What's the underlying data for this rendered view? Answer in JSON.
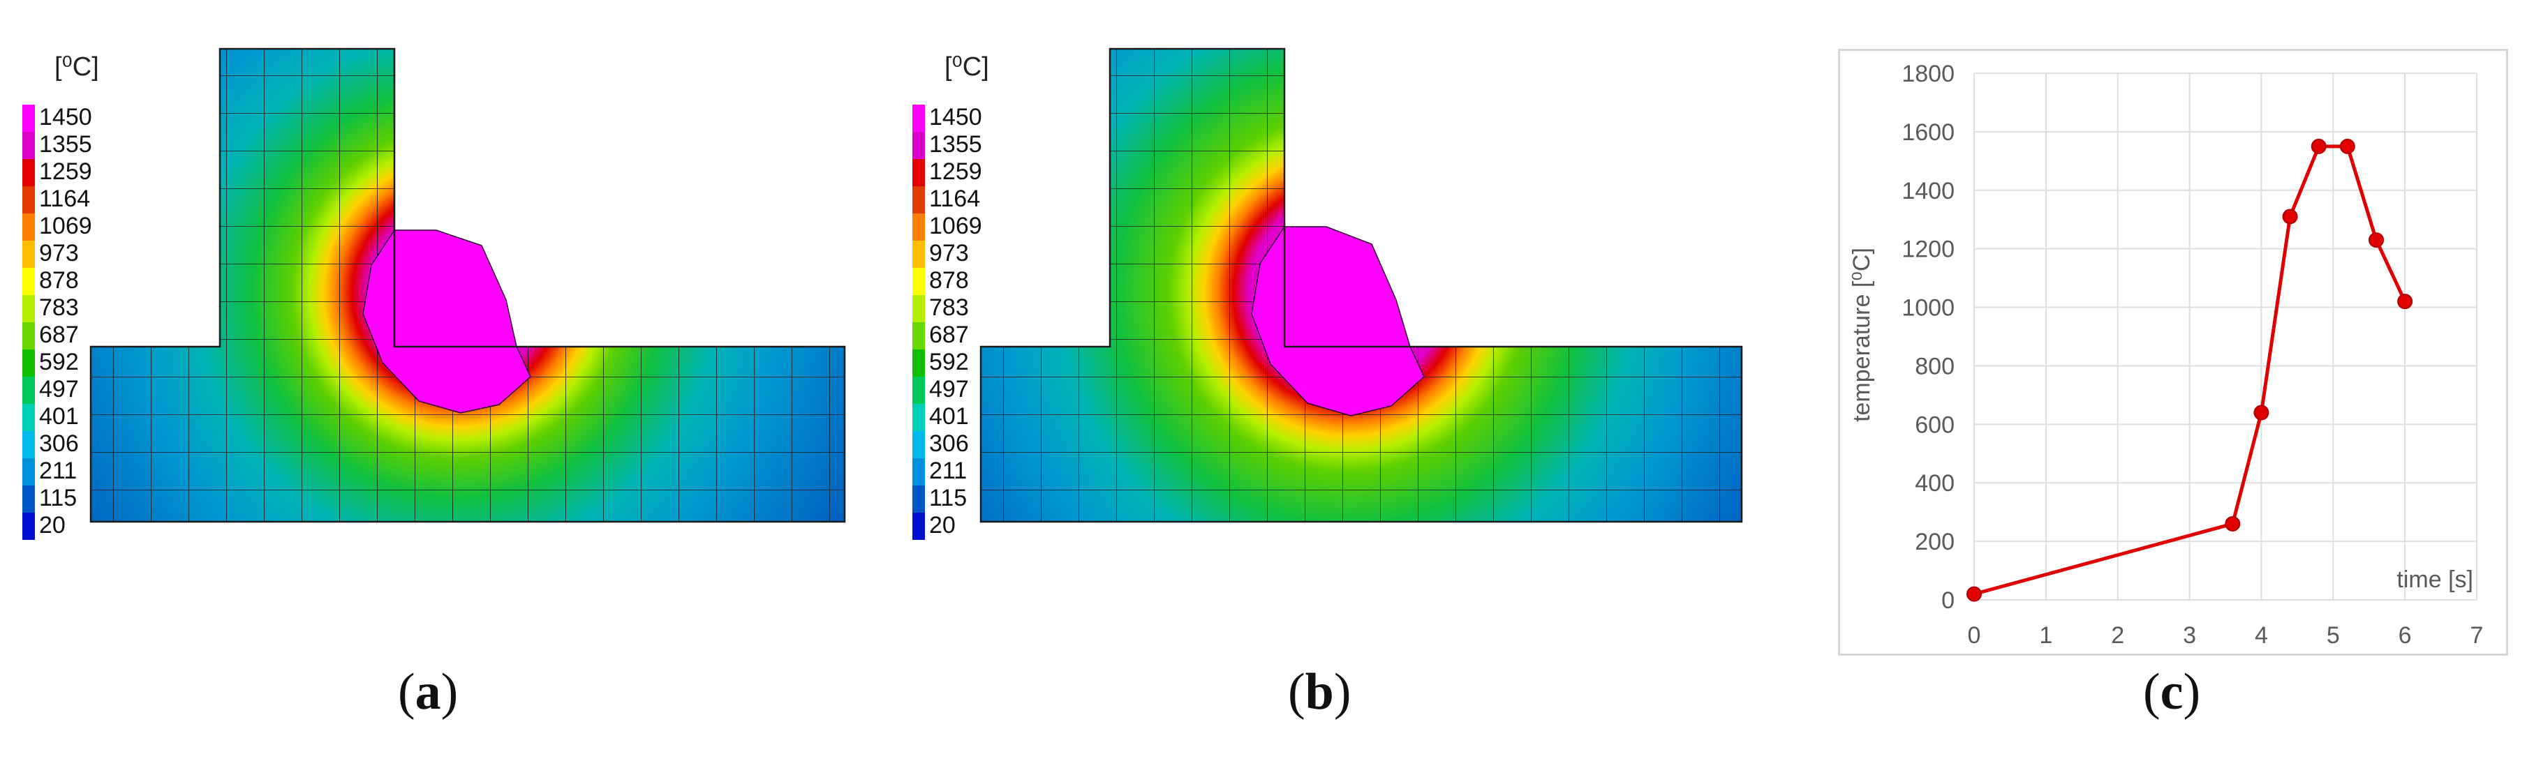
{
  "contour_legend": {
    "unit": "[⁰C]",
    "levels": [
      "1450",
      "1355",
      "1259",
      "1164",
      "1069",
      "973",
      "878",
      "783",
      "687",
      "592",
      "497",
      "401",
      "306",
      "211",
      "115",
      "20"
    ],
    "colors": [
      "#ff00ff",
      "#dd00c8",
      "#e20000",
      "#e13b00",
      "#ff7f00",
      "#ffbf00",
      "#ffff00",
      "#b5ef00",
      "#69d800",
      "#10c000",
      "#00c85a",
      "#00d0b8",
      "#00baee",
      "#0091dd",
      "#0058c8",
      "#0010d0"
    ]
  },
  "captions": {
    "a": "a",
    "b": "b",
    "c": "c"
  },
  "chart_data": {
    "type": "line",
    "title": "",
    "xlabel": "time [s]",
    "ylabel": "temperature [⁰C]",
    "xlim": [
      0,
      7
    ],
    "ylim": [
      0,
      1800
    ],
    "xticks": [
      0,
      1,
      2,
      3,
      4,
      5,
      6,
      7
    ],
    "yticks": [
      0,
      200,
      400,
      600,
      800,
      1000,
      1200,
      1400,
      1600,
      1800
    ],
    "grid": true,
    "legend": "none",
    "series": [
      {
        "color": "#e00000",
        "x": [
          0,
          3.6,
          4.0,
          4.4,
          4.8,
          5.2,
          5.6,
          6.0
        ],
        "y": [
          20,
          260,
          640,
          1310,
          1550,
          1550,
          1230,
          1020
        ]
      }
    ]
  }
}
